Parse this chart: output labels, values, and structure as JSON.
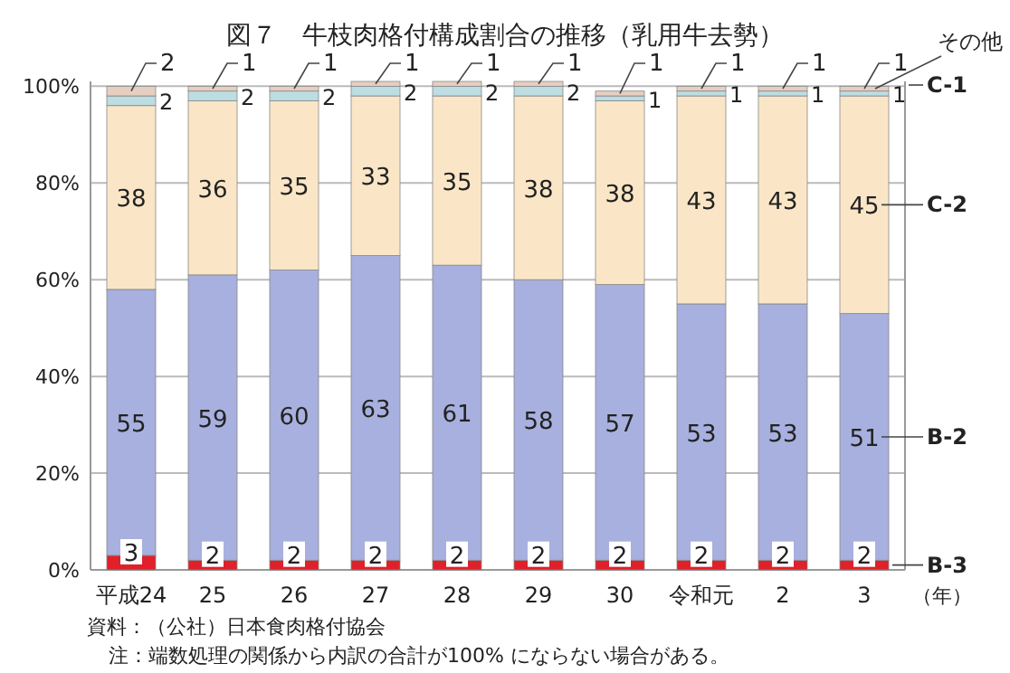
{
  "chart_data": {
    "type": "bar",
    "stacked": true,
    "title": "図７　牛枝肉格付構成割合の推移（乳用牛去勢）",
    "xlabel": "（年）",
    "categories": [
      "平成24",
      "25",
      "26",
      "27",
      "28",
      "29",
      "30",
      "令和元",
      "2",
      "3"
    ],
    "series": [
      {
        "name": "B-3",
        "color": "#e0202a",
        "values": [
          3,
          2,
          2,
          2,
          2,
          2,
          2,
          2,
          2,
          2
        ]
      },
      {
        "name": "B-2",
        "color": "#a7b0de",
        "values": [
          55,
          59,
          60,
          63,
          61,
          58,
          57,
          53,
          53,
          51
        ]
      },
      {
        "name": "C-2",
        "color": "#fae6c6",
        "values": [
          38,
          36,
          35,
          33,
          35,
          38,
          38,
          43,
          43,
          45
        ]
      },
      {
        "name": "C-1",
        "color": "#bcdde2",
        "values": [
          2,
          2,
          2,
          2,
          2,
          2,
          1,
          1,
          1,
          1
        ]
      },
      {
        "name": "その他",
        "color": "#e6cfc0",
        "values": [
          2,
          1,
          1,
          1,
          1,
          1,
          1,
          1,
          1,
          1
        ]
      }
    ],
    "ylim": [
      0,
      101
    ],
    "yticks": [
      {
        "value": 0,
        "label": "0%"
      },
      {
        "value": 20,
        "label": "20%"
      },
      {
        "value": 40,
        "label": "40%"
      },
      {
        "value": 60,
        "label": "60%"
      },
      {
        "value": 80,
        "label": "80%"
      },
      {
        "value": 100,
        "label": "100%"
      }
    ],
    "grid": "y",
    "data_labels": true,
    "annotations": [
      "資料：（公社）日本食肉格付協会",
      "注：端数処理の関係から内訳の合計が100% にならない場合がある。"
    ]
  }
}
